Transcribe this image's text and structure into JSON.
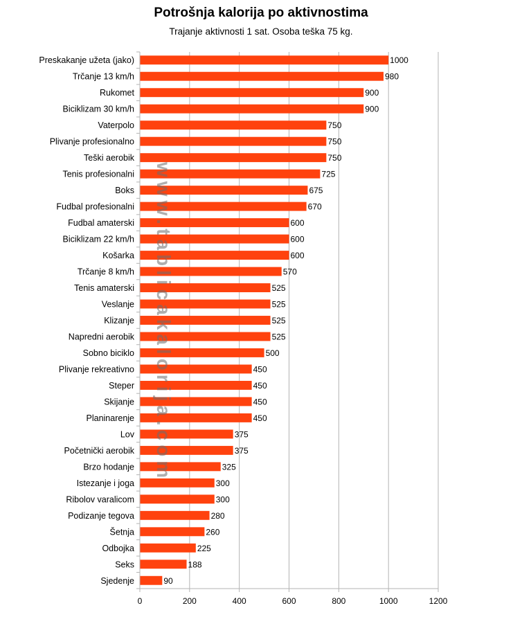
{
  "chart_data": {
    "type": "bar",
    "orientation": "horizontal",
    "title": "Potrošnja kalorija po aktivnostima",
    "subtitle": "Trajanje aktivnosti 1 sat. Osoba teška 75 kg.",
    "watermark": "www.tablicakalorija.com",
    "categories": [
      "Preskakanje užeta (jako)",
      "Trčanje 13 km/h",
      "Rukomet",
      "Biciklizam 30 km/h",
      "Vaterpolo",
      "Plivanje profesionalno",
      "Teški aerobik",
      "Tenis profesionalni",
      "Boks",
      "Fudbal profesionalni",
      "Fudbal amaterski",
      "Biciklizam 22 km/h",
      "Košarka",
      "Trčanje 8 km/h",
      "Tenis amaterski",
      "Veslanje",
      "Klizanje",
      "Napredni aerobik",
      "Sobno biciklo",
      "Plivanje rekreativno",
      "Steper",
      "Skijanje",
      "Planinarenje",
      "Lov",
      "Početnički aerobik",
      "Brzo hodanje",
      "Istezanje i joga",
      "Ribolov varalicom",
      "Podizanje tegova",
      "Šetnja",
      "Odbojka",
      "Seks",
      "Sjedenje"
    ],
    "values": [
      1000,
      980,
      900,
      900,
      750,
      750,
      750,
      725,
      675,
      670,
      600,
      600,
      600,
      570,
      525,
      525,
      525,
      525,
      500,
      450,
      450,
      450,
      450,
      375,
      375,
      325,
      300,
      300,
      280,
      260,
      225,
      188,
      90
    ],
    "xlim": [
      0,
      1200
    ],
    "xticks": [
      0,
      200,
      400,
      600,
      800,
      1000,
      1200
    ],
    "grid": "vertical",
    "bar_color": "#ff420e",
    "legend": "none"
  }
}
